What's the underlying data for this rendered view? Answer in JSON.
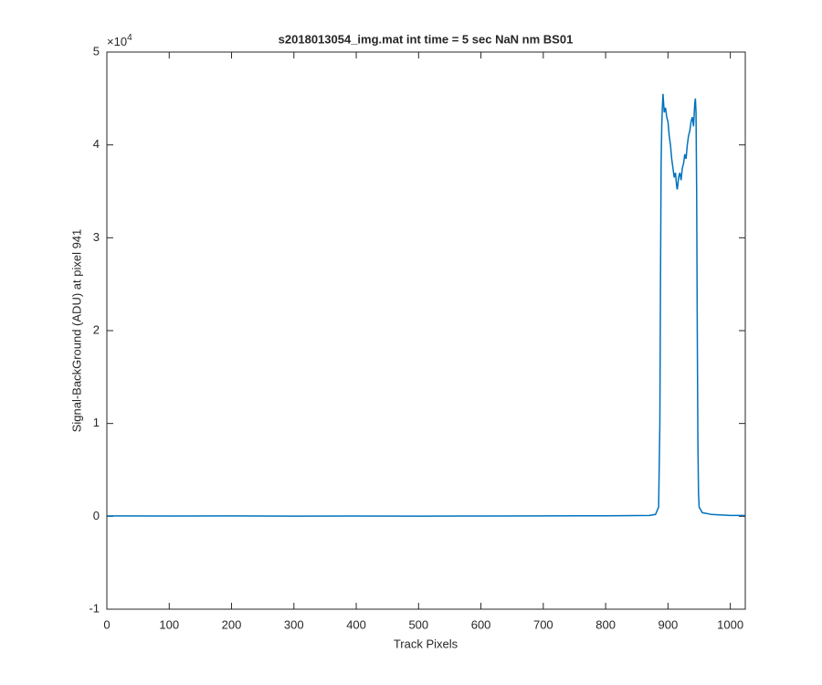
{
  "chart_data": {
    "type": "line",
    "title": "s2018013054_img.mat int time = 5 sec  NaN nm BS01",
    "x_label": "Track Pixels",
    "y_label": "Signal-BackGround (ADU) at pixel 941",
    "y_multiplier": {
      "base": "×10",
      "exponent": "4"
    },
    "x": [
      1,
      100,
      200,
      300,
      400,
      500,
      600,
      700,
      800,
      870,
      880,
      885,
      887,
      888,
      889,
      890,
      891,
      892,
      894,
      896,
      898,
      900,
      902,
      904,
      906,
      908,
      910,
      912,
      914,
      915,
      917,
      919,
      921,
      923,
      925,
      927,
      929,
      931,
      933,
      935,
      937,
      939,
      941,
      943,
      944,
      945,
      946,
      947,
      948,
      949,
      950,
      955,
      970,
      1000,
      1024
    ],
    "series": [
      {
        "color": "#0072bd",
        "values": [
          0.005,
          0.003,
          0.004,
          0.002,
          0.003,
          0.002,
          0.003,
          0.004,
          0.006,
          0.01,
          0.02,
          0.1,
          1.0,
          2.5,
          3.8,
          4.2,
          4.4,
          4.55,
          4.35,
          4.4,
          4.3,
          4.25,
          4.1,
          4.0,
          3.85,
          3.75,
          3.65,
          3.7,
          3.55,
          3.52,
          3.65,
          3.7,
          3.62,
          3.75,
          3.8,
          3.9,
          3.85,
          4.0,
          4.1,
          4.15,
          4.25,
          4.3,
          4.2,
          4.45,
          4.5,
          4.35,
          3.5,
          2.0,
          0.8,
          0.25,
          0.1,
          0.04,
          0.02,
          0.01,
          0.01
        ]
      }
    ],
    "xlim": [
      0,
      1024
    ],
    "xticks": [
      0,
      100,
      200,
      300,
      400,
      500,
      600,
      700,
      800,
      900,
      1000
    ],
    "ylim": [
      -1,
      5
    ],
    "yticks": [
      -1,
      0,
      1,
      2,
      3,
      4,
      5
    ],
    "grid": false
  }
}
